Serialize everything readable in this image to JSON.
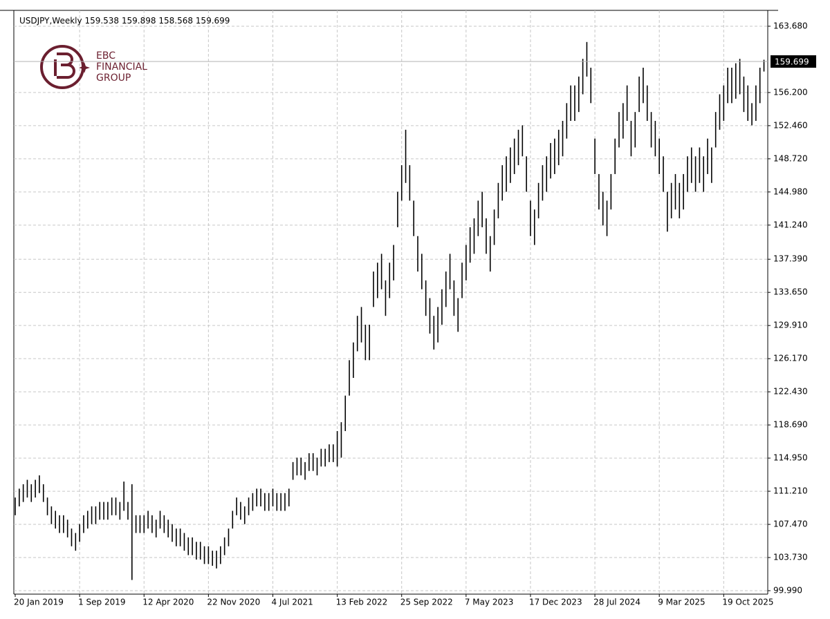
{
  "chart_data": {
    "type": "ohlc",
    "symbol": "USDJPY,Weekly",
    "last_open": 159.538,
    "last_close": 159.699,
    "color": "#000000",
    "grid": true,
    "logo": {
      "lines": [
        "EBC",
        "FINANCIAL",
        "GROUP"
      ]
    },
    "ylim": [
      99.6,
      165.47
    ],
    "yticks": [
      {
        "value": 99.99,
        "label": "99.990"
      },
      {
        "value": 103.73,
        "label": "103.730"
      },
      {
        "value": 107.47,
        "label": "107.470"
      },
      {
        "value": 111.21,
        "label": "111.210"
      },
      {
        "value": 114.95,
        "label": "114.950"
      },
      {
        "value": 118.69,
        "label": "118.690"
      },
      {
        "value": 122.43,
        "label": "122.430"
      },
      {
        "value": 126.17,
        "label": "126.170"
      },
      {
        "value": 129.91,
        "label": "129.910"
      },
      {
        "value": 133.65,
        "label": "133.650"
      },
      {
        "value": 137.39,
        "label": "137.390"
      },
      {
        "value": 141.24,
        "label": "141.240"
      },
      {
        "value": 144.98,
        "label": "144.980"
      },
      {
        "value": 148.72,
        "label": "148.720"
      },
      {
        "value": 152.46,
        "label": "152.460"
      },
      {
        "value": 156.2,
        "label": "156.200"
      },
      {
        "value": 163.68,
        "label": "163.680"
      }
    ],
    "categories": [
      "20 Jan 2019",
      null,
      null,
      null,
      null,
      null,
      null,
      null,
      null,
      null,
      null,
      null,
      null,
      null,
      null,
      null,
      "1 Sep 2019",
      null,
      null,
      null,
      null,
      null,
      null,
      null,
      null,
      null,
      null,
      null,
      null,
      null,
      null,
      null,
      "12 Apr 2020",
      null,
      null,
      null,
      null,
      null,
      null,
      null,
      null,
      null,
      null,
      null,
      null,
      null,
      null,
      null,
      "22 Nov 2020",
      null,
      null,
      null,
      null,
      null,
      null,
      null,
      null,
      null,
      null,
      null,
      null,
      null,
      null,
      null,
      "4 Jul 2021",
      null,
      null,
      null,
      null,
      null,
      null,
      null,
      null,
      null,
      null,
      null,
      null,
      null,
      null,
      null,
      "13 Feb 2022",
      null,
      null,
      null,
      null,
      null,
      null,
      null,
      null,
      null,
      null,
      null,
      null,
      null,
      null,
      null,
      "25 Sep 2022",
      null,
      null,
      null,
      null,
      null,
      null,
      null,
      null,
      null,
      null,
      null,
      null,
      null,
      null,
      null,
      "7 May 2023",
      null,
      null,
      null,
      null,
      null,
      null,
      null,
      null,
      null,
      null,
      null,
      null,
      null,
      null,
      null,
      "17 Dec 2023",
      null,
      null,
      null,
      null,
      null,
      null,
      null,
      null,
      null,
      null,
      null,
      null,
      null,
      null,
      null,
      "28 Jul 2024",
      null,
      null,
      null,
      null,
      null,
      null,
      null,
      null,
      null,
      null,
      null,
      null,
      null,
      null,
      null,
      "9 Mar 2025",
      null,
      null,
      null,
      null,
      null,
      null,
      null,
      null,
      null,
      null,
      null,
      null,
      null,
      null,
      null,
      "19 Oct 2025",
      null,
      null,
      null,
      null,
      null,
      null,
      null,
      null,
      null,
      null
    ],
    "high": [
      110.5,
      111.5,
      112,
      112.5,
      112,
      112.5,
      113,
      112,
      110.5,
      109.5,
      109,
      108.5,
      108.5,
      108,
      107,
      106.5,
      107.5,
      108.5,
      109,
      109.5,
      109.5,
      110,
      110,
      110,
      110.5,
      110.5,
      110,
      112.3,
      110,
      112,
      108.5,
      108.5,
      108.5,
      109,
      108.5,
      108,
      109,
      108.5,
      108,
      107.5,
      107,
      107,
      106.5,
      106,
      106,
      105.5,
      105.5,
      105,
      105,
      104.5,
      104.5,
      105,
      106,
      107,
      109,
      110.5,
      110,
      109.5,
      110.5,
      111,
      111.5,
      111.5,
      111,
      111,
      111.5,
      111,
      111,
      111,
      111.5,
      114.5,
      115,
      115,
      114.5,
      115.5,
      115.5,
      115,
      116,
      116,
      116.5,
      116.5,
      118,
      119,
      122,
      126,
      128,
      131,
      132,
      130,
      130,
      136,
      137,
      138,
      135,
      137,
      139,
      145,
      148,
      152,
      148,
      144,
      140,
      138,
      135,
      133,
      131,
      132,
      134,
      136,
      138,
      135,
      133,
      137,
      139,
      141,
      142,
      144,
      145,
      142,
      140,
      143,
      146,
      148,
      149,
      150,
      151,
      152,
      152.5,
      149,
      144,
      143,
      146,
      148,
      149,
      150.5,
      151,
      152,
      153,
      155,
      157,
      157,
      158,
      160,
      161.9,
      159,
      151,
      147,
      145,
      144,
      147,
      151,
      154,
      155,
      157,
      153,
      154,
      158,
      159,
      157,
      154,
      153,
      151,
      149,
      145,
      146,
      147,
      146,
      147,
      149,
      150,
      149,
      150,
      149,
      151,
      150,
      154,
      156,
      157,
      159,
      159,
      159.5,
      160,
      158,
      157,
      155,
      157,
      159,
      159.898
    ],
    "low": [
      108.5,
      109.5,
      110,
      110.5,
      110,
      110.5,
      111,
      110,
      108.5,
      107.5,
      107,
      106.5,
      106.5,
      106,
      105,
      104.5,
      105.5,
      106.5,
      107,
      107.5,
      107.5,
      108,
      108,
      108,
      108.5,
      108.5,
      108,
      109,
      108,
      101.2,
      106.5,
      106.5,
      106.5,
      107,
      106.5,
      106,
      107,
      106.5,
      106,
      105.5,
      105,
      105,
      104.5,
      104,
      104,
      103.5,
      103.5,
      103,
      103,
      102.8,
      102.5,
      103,
      104,
      105,
      107,
      108.5,
      108,
      107.5,
      108.5,
      109,
      109.5,
      109.5,
      109,
      109,
      109.5,
      109,
      109,
      109,
      109.5,
      112.5,
      113,
      113,
      112.5,
      113.5,
      113.5,
      113,
      114,
      114,
      114.5,
      114.5,
      114,
      115,
      118,
      122,
      124,
      127,
      128,
      126,
      126,
      132,
      133,
      134,
      131,
      133,
      135,
      141,
      144,
      146,
      144,
      140,
      136,
      134,
      131,
      129,
      127.2,
      128,
      130,
      132,
      134,
      131,
      129.2,
      133,
      135,
      137,
      138,
      140,
      141,
      138,
      136,
      139,
      142,
      144,
      145,
      146,
      147,
      148,
      149,
      145,
      140,
      139,
      142,
      144,
      145,
      146.5,
      147,
      148,
      149,
      151,
      153,
      153,
      154,
      156,
      158,
      155,
      147,
      143,
      141.2,
      140,
      143,
      147,
      150,
      151,
      153,
      149,
      150,
      154,
      155,
      153,
      150,
      149,
      147,
      145,
      140.5,
      142,
      143,
      142,
      143,
      145,
      146,
      145,
      146,
      145,
      147,
      146,
      150,
      152,
      153,
      155,
      155,
      155.5,
      156,
      154,
      153,
      152.5,
      153,
      155,
      158.568
    ]
  }
}
